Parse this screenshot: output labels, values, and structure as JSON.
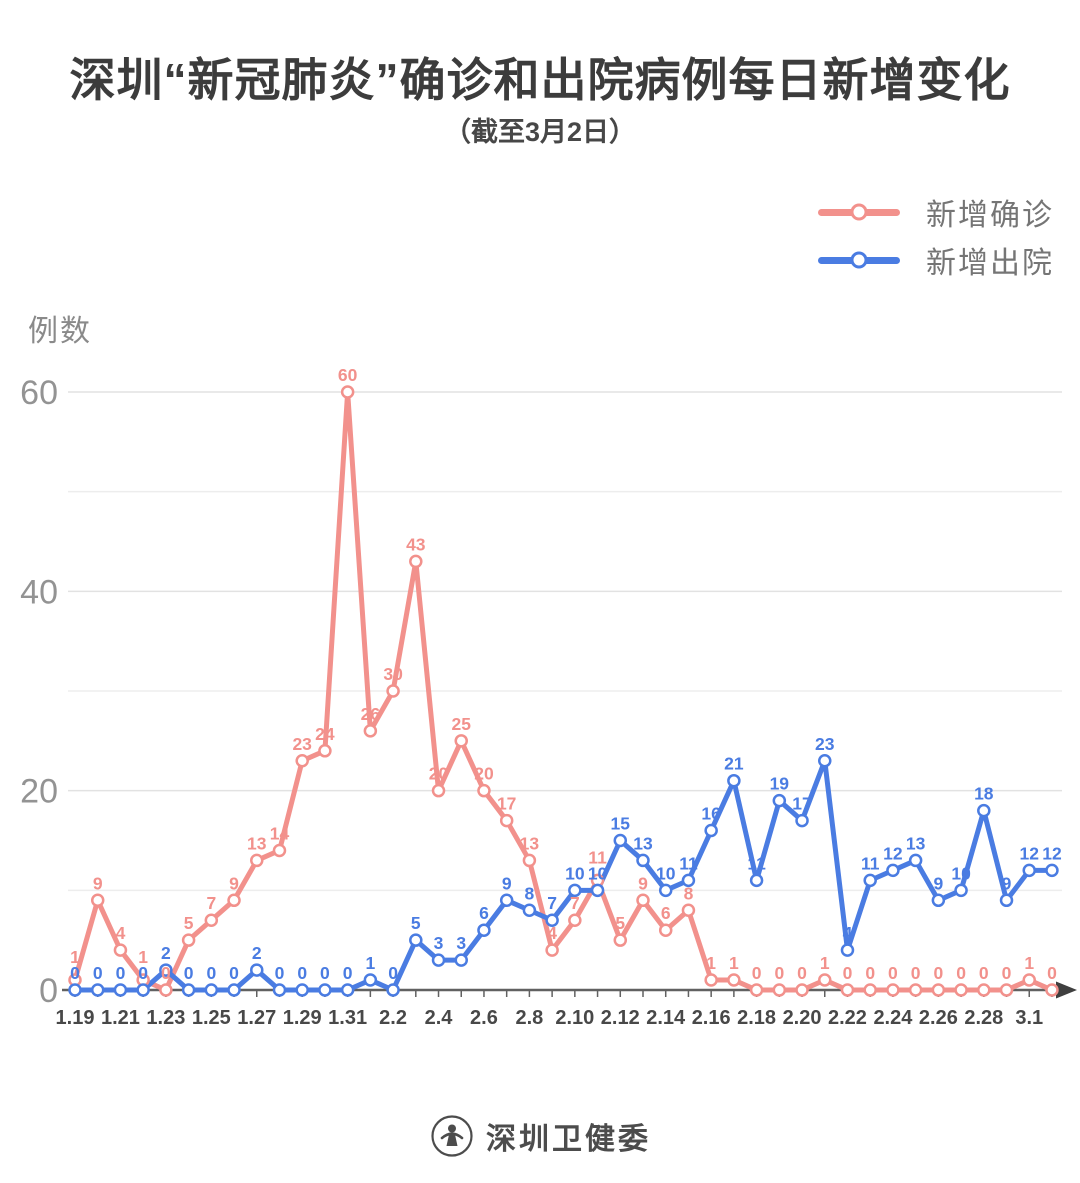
{
  "title": "深圳“新冠肺炎”确诊和出院病例每日新增变化",
  "subtitle": "（截至3月2日）",
  "y_axis_label": "例数",
  "legend": [
    {
      "label": "新增确诊",
      "color": "#f2918c"
    },
    {
      "label": "新增出院",
      "color": "#4a7ce2"
    }
  ],
  "footer": {
    "org_name": "深圳卫健委"
  },
  "colors": {
    "confirmed": "#f2918c",
    "discharged": "#4a7ce2",
    "axis": "#616161",
    "grid_major": "#e2e2e2",
    "grid_minor": "#ededed",
    "y_tick_text": "#939393",
    "x_tick_text": "#484848"
  },
  "chart_data": {
    "type": "line",
    "title": "深圳“新冠肺炎”确诊和出院病例每日新增变化（截至3月2日）",
    "xlabel": "",
    "ylabel": "例数",
    "yticks": [
      0,
      20,
      40,
      60
    ],
    "ylim": [
      0,
      62
    ],
    "grid": "horizontal lines every 10 units",
    "legend_position": "top-right",
    "x_labeled_every": 2,
    "x": [
      "1.19",
      "1.20",
      "1.21",
      "1.22",
      "1.23",
      "1.24",
      "1.25",
      "1.26",
      "1.27",
      "1.28",
      "1.29",
      "1.30",
      "1.31",
      "2.1",
      "2.2",
      "2.3",
      "2.4",
      "2.5",
      "2.6",
      "2.7",
      "2.8",
      "2.9",
      "2.10",
      "2.11",
      "2.12",
      "2.13",
      "2.14",
      "2.15",
      "2.16",
      "2.17",
      "2.18",
      "2.19",
      "2.20",
      "2.21",
      "2.22",
      "2.23",
      "2.24",
      "2.25",
      "2.26",
      "2.27",
      "2.28",
      "2.29",
      "3.1",
      "3.2"
    ],
    "series": [
      {
        "name": "新增确诊",
        "color": "#f2918c",
        "values": [
          1,
          9,
          4,
          1,
          0,
          5,
          7,
          9,
          13,
          14,
          23,
          24,
          60,
          26,
          30,
          43,
          20,
          25,
          20,
          17,
          13,
          4,
          7,
          11,
          5,
          9,
          6,
          8,
          1,
          1,
          0,
          0,
          0,
          1,
          0,
          0,
          0,
          0,
          0,
          0,
          0,
          0,
          1,
          0
        ]
      },
      {
        "name": "新增出院",
        "color": "#4a7ce2",
        "values": [
          0,
          0,
          0,
          0,
          2,
          0,
          0,
          0,
          2,
          0,
          0,
          0,
          0,
          1,
          0,
          5,
          3,
          3,
          6,
          9,
          8,
          7,
          10,
          10,
          15,
          13,
          10,
          11,
          16,
          21,
          11,
          19,
          17,
          23,
          4,
          11,
          12,
          13,
          9,
          10,
          18,
          9,
          12,
          12
        ]
      }
    ]
  }
}
